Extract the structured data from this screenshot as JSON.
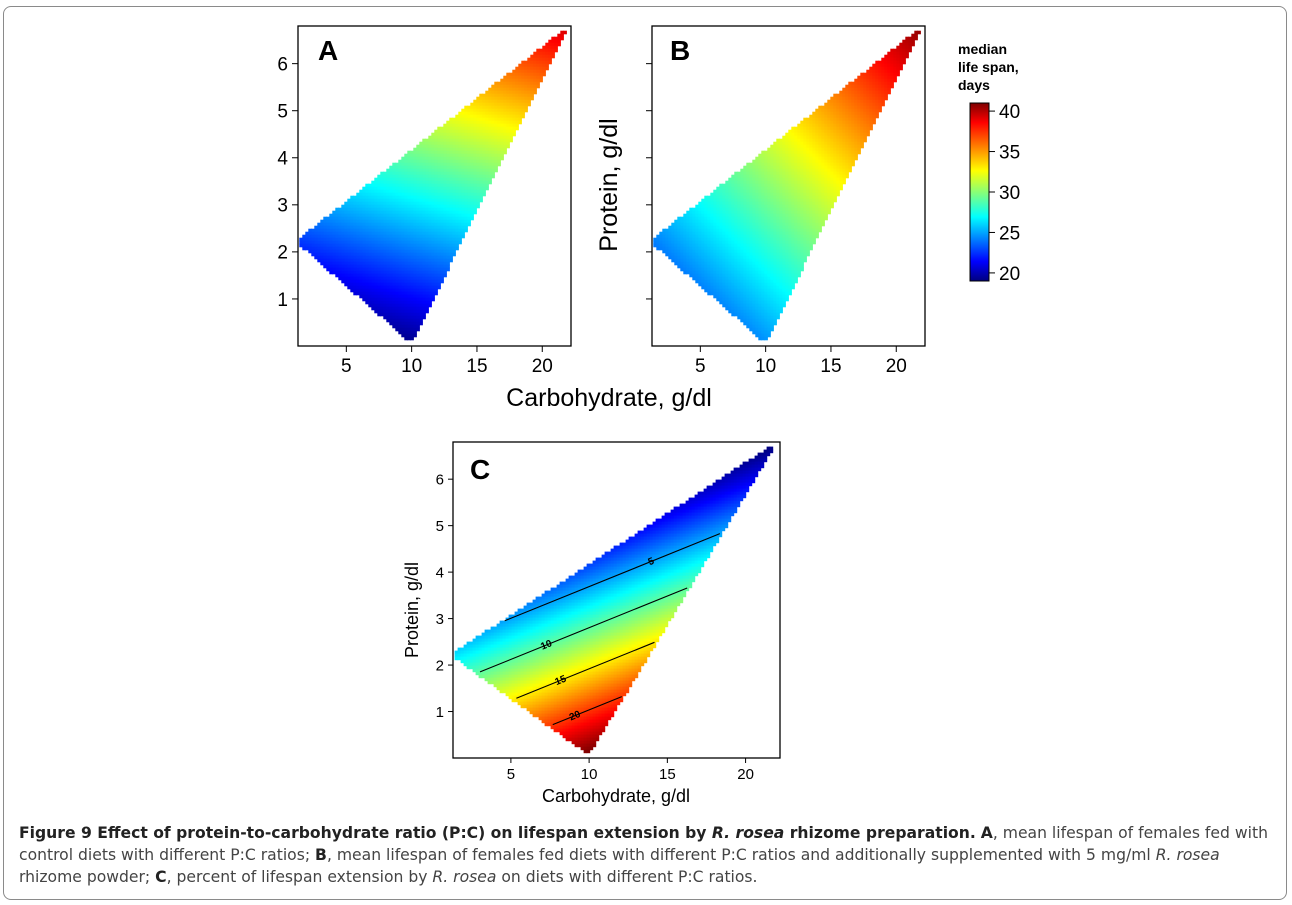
{
  "figure": {
    "caption": {
      "bold": "Figure 9 Effect of protein-to-carbohydrate ratio (P:C) on lifespan extension by ",
      "bold_species": "R. rosea",
      "bold_end": " rhizome preparation.",
      "a_label": "A",
      "a_text": ", mean lifespan of females fed with control diets with different P:C ratios; ",
      "b_label": "B",
      "b_text": ", mean lifespan of females fed diets with different P:C ratios and additionally supplemented with 5 mg/ml ",
      "b_species": "R. rosea",
      "b_text_end": " rhizome powder; ",
      "c_label": "C",
      "c_text": ", percent of lifespan extension by ",
      "c_species": "R. rosea",
      "c_text_end": " on diets with different P:C ratios."
    },
    "shared_xlabel_top": "Carbohydrate, g/dl",
    "shared_ylabel_top": "Protein, g/dl",
    "colorbar": {
      "title": [
        "median",
        "life span,",
        "days"
      ],
      "ticks": [
        20,
        25,
        30,
        35,
        40
      ],
      "range": [
        19,
        41
      ]
    }
  },
  "chart_data": [
    {
      "type": "heatmap",
      "panel": "A",
      "xlabel": "",
      "ylabel": "",
      "xlim": [
        1.3,
        22.2
      ],
      "ylim": [
        0,
        6.8
      ],
      "xticks": [
        5,
        10,
        15,
        20
      ],
      "yticks": [
        1,
        2,
        3,
        4,
        5,
        6
      ],
      "domain_vertices": [
        [
          1.4,
          2.25
        ],
        [
          10,
          0.15
        ],
        [
          21.7,
          6.7
        ]
      ],
      "z_label": "median life span, days",
      "z_at_vertices": [
        23,
        19.5,
        39
      ],
      "colormap": "jet",
      "zlim": [
        19,
        41
      ]
    },
    {
      "type": "heatmap",
      "panel": "B",
      "xlabel": "",
      "ylabel": "Protein, g/dl",
      "xlim": [
        1.3,
        22.2
      ],
      "ylim": [
        0,
        6.8
      ],
      "xticks": [
        5,
        10,
        15,
        20
      ],
      "yticks": [
        1,
        2,
        3,
        4,
        5,
        6
      ],
      "domain_vertices": [
        [
          1.4,
          2.25
        ],
        [
          10,
          0.15
        ],
        [
          21.7,
          6.7
        ]
      ],
      "z_label": "median life span, days",
      "z_at_vertices": [
        24.5,
        25,
        40.5
      ],
      "colormap": "jet",
      "zlim": [
        19,
        41
      ]
    },
    {
      "type": "heatmap",
      "panel": "C",
      "xlabel": "Carbohydrate, g/dl",
      "ylabel": "Protein, g/dl",
      "xlim": [
        1.3,
        22.2
      ],
      "ylim": [
        0,
        6.8
      ],
      "xticks": [
        5,
        10,
        15,
        20
      ],
      "yticks": [
        1,
        2,
        3,
        4,
        5,
        6
      ],
      "domain_vertices": [
        [
          1.4,
          2.25
        ],
        [
          10,
          0.15
        ],
        [
          21.7,
          6.7
        ]
      ],
      "z_label": "percent of lifespan extension",
      "z_at_vertices": [
        6.5,
        25,
        -3
      ],
      "colormap": "jet",
      "zlim": [
        -3,
        25
      ],
      "contours": [
        {
          "level": 5,
          "label": "5"
        },
        {
          "level": 10,
          "label": "10"
        },
        {
          "level": 15,
          "label": "15"
        },
        {
          "level": 20,
          "label": "20"
        }
      ]
    }
  ]
}
